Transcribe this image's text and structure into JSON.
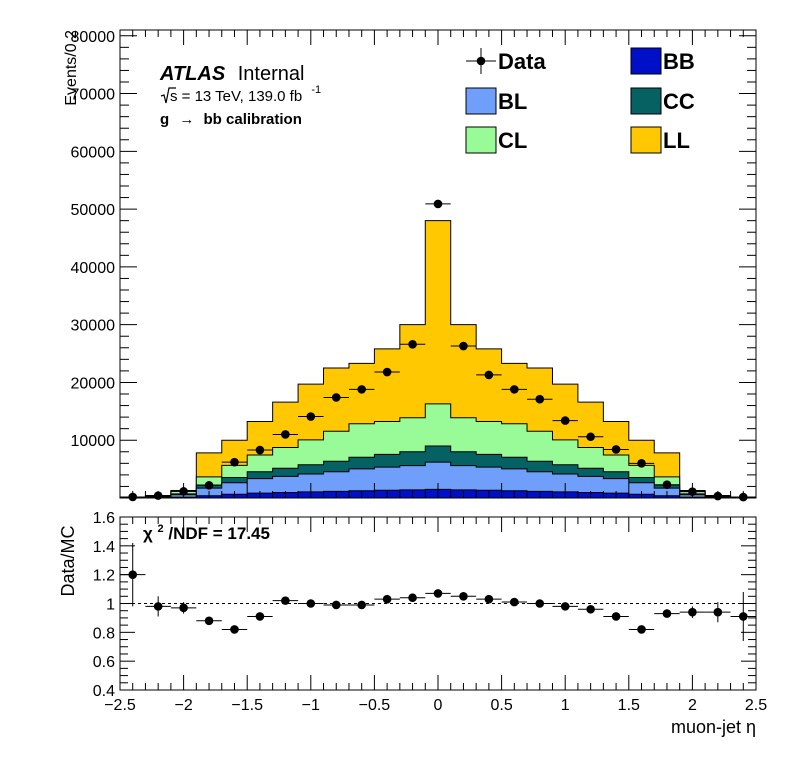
{
  "chart_data": [
    {
      "type": "bar",
      "stacked": true,
      "ylabel": "Events/0.2",
      "ylim": [
        0,
        81000
      ],
      "y_ticks": [
        10000,
        20000,
        30000,
        40000,
        50000,
        60000,
        70000,
        80000
      ],
      "y_tick_labels": [
        "10000",
        "20000",
        "30000",
        "40000",
        "50000",
        "60000",
        "70000",
        "80000"
      ],
      "atlas": {
        "bold": "ATLAS",
        "rest": "Internal"
      },
      "energy_line": {
        "sqrt_s": "s = 13 TeV, 139.0 fb",
        "exponent": "-1"
      },
      "calib_line": {
        "left": "g",
        "right": "bb calibration"
      },
      "legend": [
        {
          "key": "Data",
          "label": "Data",
          "style": "marker"
        },
        {
          "key": "BB",
          "label": "BB",
          "style": "fill"
        },
        {
          "key": "BL",
          "label": "BL",
          "style": "fill"
        },
        {
          "key": "CC",
          "label": "CC",
          "style": "fill"
        },
        {
          "key": "CL",
          "label": "CL",
          "style": "fill"
        },
        {
          "key": "LL",
          "label": "LL",
          "style": "fill"
        }
      ],
      "colors": {
        "BB": "#0010c8",
        "BL": "#6f9ffa",
        "CC": "#066262",
        "CL": "#98fb98",
        "LL": "#ffc800"
      },
      "bin_edges": [
        -2.5,
        -2.3,
        -2.1,
        -1.9,
        -1.7,
        -1.5,
        -1.3,
        -1.1,
        -0.9,
        -0.7,
        -0.5,
        -0.3,
        -0.1,
        0.1,
        0.3,
        0.5,
        0.7,
        0.9,
        1.1,
        1.3,
        1.5,
        1.7,
        1.9,
        2.1,
        2.3,
        2.5
      ],
      "series": [
        {
          "name": "BB",
          "values": [
            20,
            60,
            160,
            400,
            650,
            850,
            950,
            1050,
            1150,
            1250,
            1350,
            1400,
            1500,
            1400,
            1350,
            1250,
            1150,
            1050,
            950,
            850,
            650,
            400,
            160,
            60,
            20
          ]
        },
        {
          "name": "BL",
          "values": [
            50,
            140,
            400,
            1300,
            2000,
            2500,
            2800,
            3100,
            3400,
            3800,
            4000,
            4200,
            4700,
            4200,
            4000,
            3800,
            3400,
            3100,
            2800,
            2500,
            2000,
            1300,
            400,
            140,
            50
          ]
        },
        {
          "name": "CC",
          "values": [
            20,
            60,
            150,
            550,
            900,
            1200,
            1400,
            1600,
            1800,
            2000,
            2200,
            2400,
            2800,
            2400,
            2200,
            2000,
            1800,
            1600,
            1400,
            1200,
            900,
            550,
            150,
            60,
            20
          ]
        },
        {
          "name": "CL",
          "values": [
            50,
            150,
            450,
            1400,
            2100,
            2900,
            3600,
            4300,
            5200,
            5800,
            5700,
            5900,
            7300,
            5900,
            5700,
            5800,
            5200,
            4300,
            3600,
            2900,
            2100,
            1400,
            450,
            150,
            50
          ]
        },
        {
          "name": "LL",
          "values": [
            10,
            30,
            140,
            4150,
            4350,
            5800,
            7850,
            9650,
            10950,
            10450,
            12550,
            16100,
            31700,
            16100,
            12550,
            10450,
            10950,
            9650,
            7850,
            5800,
            4350,
            4150,
            140,
            30,
            10
          ]
        }
      ],
      "data_points": {
        "name": "Data",
        "x": [
          -2.4,
          -2.2,
          -2.0,
          -1.8,
          -1.6,
          -1.4,
          -1.2,
          -1.0,
          -0.8,
          -0.6,
          -0.4,
          -0.2,
          0.0,
          0.2,
          0.4,
          0.6,
          0.8,
          1.0,
          1.2,
          1.4,
          1.6,
          1.8,
          2.0,
          2.2,
          2.4
        ],
        "y": [
          180,
          410,
          1150,
          2200,
          6200,
          8300,
          11000,
          14100,
          17400,
          18800,
          21800,
          26600,
          50900,
          26300,
          21300,
          18800,
          17100,
          13400,
          10600,
          8400,
          6000,
          2300,
          1100,
          340,
          160
        ]
      }
    },
    {
      "type": "scatter",
      "title": "",
      "xlabel": "muon-jet η",
      "ylabel": "Data/MC",
      "xlim": [
        -2.5,
        2.5
      ],
      "ylim": [
        0.4,
        1.6
      ],
      "x_ticks": [
        -2.5,
        -2,
        -1.5,
        -1,
        -0.5,
        0,
        0.5,
        1,
        1.5,
        2,
        2.5
      ],
      "x_tick_labels": [
        "−2.5",
        "−2",
        "−1.5",
        "−1",
        "−0.5",
        "0",
        "0.5",
        "1",
        "1.5",
        "2",
        "2.5"
      ],
      "y_ticks": [
        0.4,
        0.6,
        0.8,
        1,
        1.2,
        1.4,
        1.6
      ],
      "y_tick_labels": [
        "0.4",
        "0.6",
        "0.8",
        "1",
        "1.2",
        "1.4",
        "1.6"
      ],
      "reference_line": 1,
      "chi2": {
        "prefix": "χ",
        "sup": "2",
        "suffix": "/NDF = 17.45"
      },
      "x": [
        -2.4,
        -2.2,
        -2.0,
        -1.8,
        -1.6,
        -1.4,
        -1.2,
        -1.0,
        -0.8,
        -0.6,
        -0.4,
        -0.2,
        0.0,
        0.2,
        0.4,
        0.6,
        0.8,
        1.0,
        1.2,
        1.4,
        1.6,
        1.8,
        2.0,
        2.2,
        2.4
      ],
      "y": [
        1.2,
        0.98,
        0.97,
        0.88,
        0.82,
        0.91,
        1.02,
        1.0,
        0.99,
        0.99,
        1.03,
        1.04,
        1.07,
        1.05,
        1.03,
        1.01,
        1.0,
        0.98,
        0.96,
        0.91,
        0.82,
        0.93,
        0.94,
        0.94,
        0.91
      ],
      "yerr": [
        0.22,
        0.07,
        0.04,
        0.02,
        0.012,
        0.012,
        0.012,
        0.012,
        0.012,
        0.012,
        0.012,
        0.012,
        0.012,
        0.012,
        0.012,
        0.012,
        0.012,
        0.012,
        0.012,
        0.012,
        0.012,
        0.02,
        0.04,
        0.07,
        0.17
      ]
    }
  ]
}
